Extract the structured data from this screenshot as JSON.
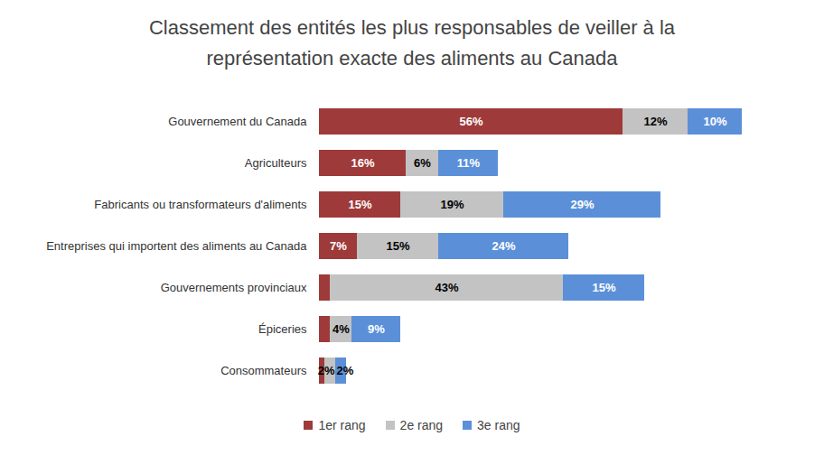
{
  "chart_data": {
    "type": "bar",
    "title": "Classement des entités les plus responsables de veiller à la représentation exacte des aliments au Canada",
    "orientation": "horizontal",
    "stacked": true,
    "data_labels": true,
    "tick_labels": "y",
    "legend": "bottom",
    "categories": [
      "Gouvernement du Canada",
      "Agriculteurs",
      "Fabricants ou transformateurs d'aliments",
      "Entreprises qui importent des aliments au Canada",
      "Gouvernements provinciaux",
      "Épiceries",
      "Consommateurs"
    ],
    "series": [
      {
        "name": "1er rang",
        "color": "#9E3A3A",
        "values": [
          56,
          16,
          15,
          7,
          2,
          2,
          1
        ],
        "value_labels": [
          "56%",
          "16%",
          "15%",
          "7%",
          null,
          null,
          null
        ]
      },
      {
        "name": "2e rang",
        "color": "#C3C3C3",
        "values": [
          12,
          6,
          19,
          15,
          43,
          4,
          2
        ],
        "value_labels": [
          "12%",
          "6%",
          "19%",
          "15%",
          "43%",
          "4%",
          "2%"
        ]
      },
      {
        "name": "3e rang",
        "color": "#5B90D9",
        "values": [
          10,
          11,
          29,
          24,
          15,
          9,
          2
        ],
        "value_labels": [
          "10%",
          "11%",
          "29%",
          "24%",
          "15%",
          "9%",
          "2%"
        ]
      }
    ]
  }
}
